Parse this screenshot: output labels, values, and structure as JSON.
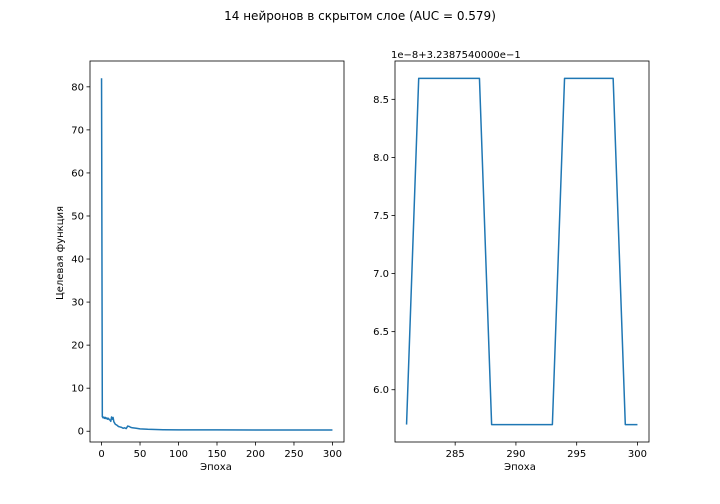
{
  "figure": {
    "title": "14 нейронов в скрытом слое (AUC = 0.579)"
  },
  "colors": {
    "series": "#1f77b4",
    "axes": "#000000",
    "background": "#ffffff"
  },
  "chart_data": [
    {
      "type": "line",
      "xlabel": "Эпоха",
      "ylabel": "Целевая функция",
      "xlim": [
        -15,
        315
      ],
      "ylim": [
        -2.5,
        86
      ],
      "xticks": [
        0,
        50,
        100,
        150,
        200,
        250,
        300
      ],
      "yticks": [
        0,
        10,
        20,
        30,
        40,
        50,
        60,
        70,
        80
      ],
      "grid": false,
      "series": [
        {
          "x": [
            0,
            1,
            2,
            3,
            4,
            5,
            6,
            7,
            8,
            9,
            10,
            11,
            12,
            13,
            14,
            15,
            16,
            17,
            18,
            19,
            20,
            22,
            24,
            26,
            28,
            30,
            32,
            34,
            36,
            38,
            40,
            45,
            50,
            60,
            70,
            80,
            100,
            150,
            200,
            250,
            300
          ],
          "y": [
            82,
            3.4,
            3.1,
            3.3,
            3.0,
            3.2,
            2.9,
            3.1,
            2.8,
            3.0,
            2.7,
            2.6,
            2.3,
            3.3,
            2.8,
            3.2,
            2.2,
            1.9,
            1.6,
            1.5,
            1.4,
            1.1,
            1.0,
            0.9,
            0.7,
            0.8,
            0.6,
            1.2,
            1.1,
            0.9,
            0.8,
            0.7,
            0.55,
            0.45,
            0.4,
            0.35,
            0.33,
            0.31,
            0.3,
            0.3,
            0.3
          ]
        }
      ]
    },
    {
      "type": "line",
      "xlabel": "Эпоха",
      "ylabel": "",
      "offset_text": "1e−8+3.2387540000e−1",
      "xlim": [
        280.05,
        300.95
      ],
      "ylim": [
        5.55,
        8.83
      ],
      "xticks": [
        285,
        290,
        295,
        300
      ],
      "yticks": [
        6.0,
        6.5,
        7.0,
        7.5,
        8.0,
        8.5
      ],
      "ytick_labels": [
        "6.0",
        "6.5",
        "7.0",
        "7.5",
        "8.0",
        "8.5"
      ],
      "grid": false,
      "series": [
        {
          "x": [
            281,
            282,
            283,
            284,
            285,
            286,
            287,
            288,
            289,
            290,
            291,
            292,
            293,
            294,
            295,
            296,
            297,
            298,
            299,
            300
          ],
          "y": [
            5.7,
            8.68,
            8.68,
            8.68,
            8.68,
            8.68,
            8.68,
            5.7,
            5.7,
            5.7,
            5.7,
            5.7,
            5.7,
            8.68,
            8.68,
            8.68,
            8.68,
            8.68,
            5.7,
            5.7
          ]
        }
      ]
    }
  ]
}
